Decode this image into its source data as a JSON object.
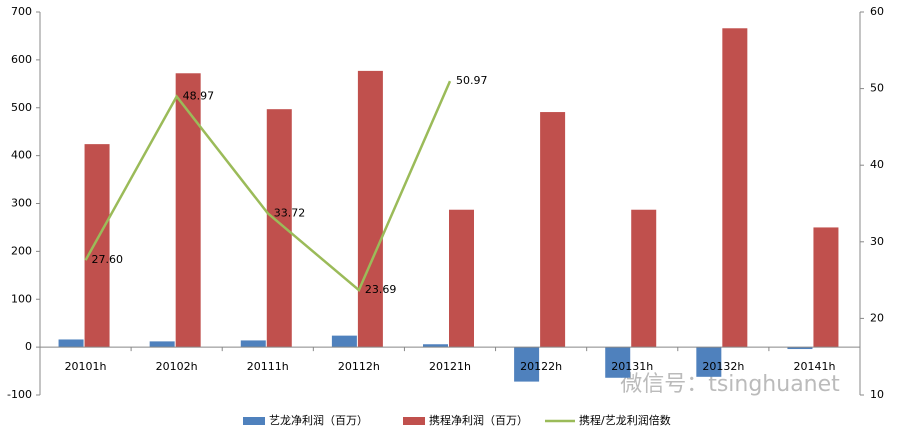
{
  "chart_data": {
    "type": "bar_line",
    "categories": [
      "20101h",
      "20102h",
      "20111h",
      "20112h",
      "20121h",
      "20122h",
      "20131h",
      "20132h",
      "20141h"
    ],
    "series": [
      {
        "name": "艺龙净利润（百万）",
        "color": "#4f81bd",
        "type": "bar",
        "values": [
          16,
          12,
          14,
          24,
          6,
          -72,
          -64,
          -62,
          -4
        ]
      },
      {
        "name": "携程净利润（百万）",
        "color": "#c0504d",
        "type": "bar",
        "values": [
          424,
          572,
          497,
          577,
          287,
          491,
          287,
          666,
          250
        ]
      },
      {
        "name": "携程/艺龙利润倍数",
        "color": "#9bbb59",
        "type": "line",
        "axis": "y2",
        "values": [
          27.6,
          48.97,
          33.72,
          23.69,
          50.97,
          null,
          null,
          null,
          null
        ],
        "value_labels": [
          "27.60",
          "48.97",
          "33.72",
          "23.69",
          "50.97",
          null,
          null,
          null,
          null
        ]
      }
    ],
    "ylim": [
      -100,
      700
    ],
    "yticks": [
      -100,
      0,
      100,
      200,
      300,
      400,
      500,
      600,
      700
    ],
    "y2lim": [
      10,
      60
    ],
    "y2ticks": [
      10,
      20,
      30,
      40,
      50,
      60
    ],
    "grid": false,
    "legend": "bottom",
    "annotation": "微信号：tsinghuanet"
  }
}
